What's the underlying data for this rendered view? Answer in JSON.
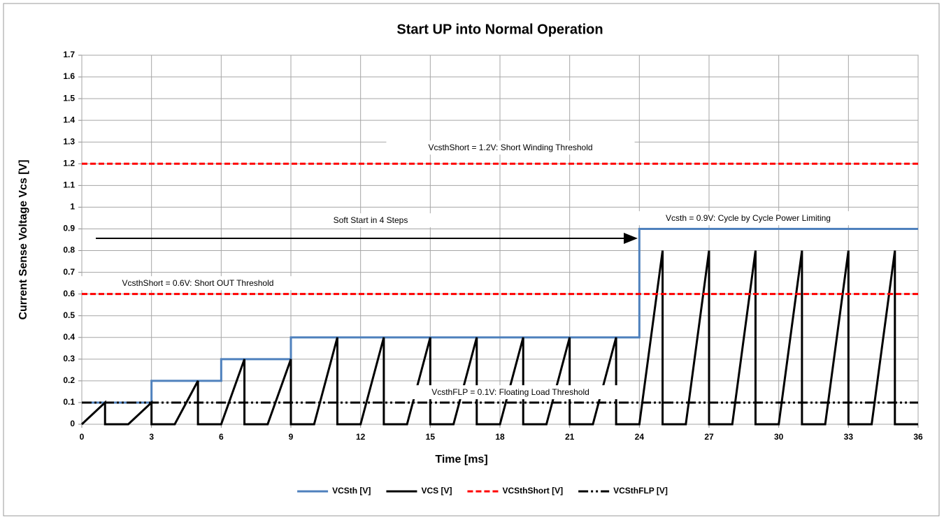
{
  "chart_data": {
    "type": "line",
    "title": "Start UP into Normal Operation",
    "x_label": "Time  [ms]",
    "y_label": "Current Sense Voltage Vcs [V]",
    "xlim": [
      0,
      36
    ],
    "xticks": [
      0,
      3,
      6,
      9,
      12,
      15,
      18,
      21,
      24,
      27,
      30,
      33,
      36
    ],
    "ylim": [
      0,
      1.7
    ],
    "yticks": [
      0,
      0.1,
      0.2,
      0.3,
      0.4,
      0.5,
      0.6,
      0.7,
      0.8,
      0.9,
      1,
      1.1,
      1.2,
      1.3,
      1.4,
      1.5,
      1.6,
      1.7
    ],
    "grid": true,
    "legend": "bottom",
    "series": [
      {
        "name": "VCSth [V]",
        "color": "#4f81bd",
        "style": "solid",
        "x": [
          0,
          3,
          3,
          6,
          6,
          9,
          9,
          24,
          24,
          36
        ],
        "values": [
          0.1,
          0.1,
          0.2,
          0.2,
          0.3,
          0.3,
          0.4,
          0.4,
          0.9,
          0.9
        ]
      },
      {
        "name": "VCS [V]",
        "color": "#000000",
        "style": "solid",
        "x": [
          0,
          1,
          1,
          2,
          3,
          3,
          4,
          5,
          5,
          6,
          7,
          7,
          8,
          9,
          9,
          10,
          11,
          11,
          12,
          13,
          13,
          14,
          15,
          15,
          16,
          17,
          17,
          18,
          19,
          19,
          20,
          21,
          21,
          22,
          23,
          23,
          24,
          25,
          25,
          26,
          27,
          27,
          28,
          29,
          29,
          30,
          31,
          31,
          32,
          33,
          33,
          34,
          35,
          35,
          36
        ],
        "values": [
          0,
          0.1,
          0,
          0,
          0.1,
          0,
          0,
          0.2,
          0,
          0,
          0.3,
          0,
          0,
          0.3,
          0,
          0,
          0.4,
          0,
          0,
          0.4,
          0,
          0,
          0.4,
          0,
          0,
          0.4,
          0,
          0,
          0.4,
          0,
          0,
          0.4,
          0,
          0,
          0.4,
          0,
          0,
          0.8,
          0,
          0,
          0.8,
          0,
          0,
          0.8,
          0,
          0,
          0.8,
          0,
          0,
          0.8,
          0,
          0,
          0.8,
          0,
          0
        ]
      },
      {
        "name": "VCSthShort [V]",
        "color": "#ff0000",
        "style": "dashed",
        "x": [
          0,
          36,
          null,
          0,
          36
        ],
        "values": [
          1.2,
          1.2,
          null,
          0.6,
          0.6
        ]
      },
      {
        "name": "VCSthFLP [V]",
        "color": "#000000",
        "style": "dashdot",
        "x": [
          0,
          36
        ],
        "values": [
          0.1,
          0.1
        ]
      }
    ],
    "annotations": [
      "VcsthShort = 1.2V: Short Winding Threshold",
      "Soft Start in 4 Steps",
      "Vcsth = 0.9V: Cycle by Cycle Power Limiting",
      "VcsthShort = 0.6V: Short OUT Threshold",
      "VcsthFLP = 0.1V: Floating Load Threshold"
    ]
  }
}
